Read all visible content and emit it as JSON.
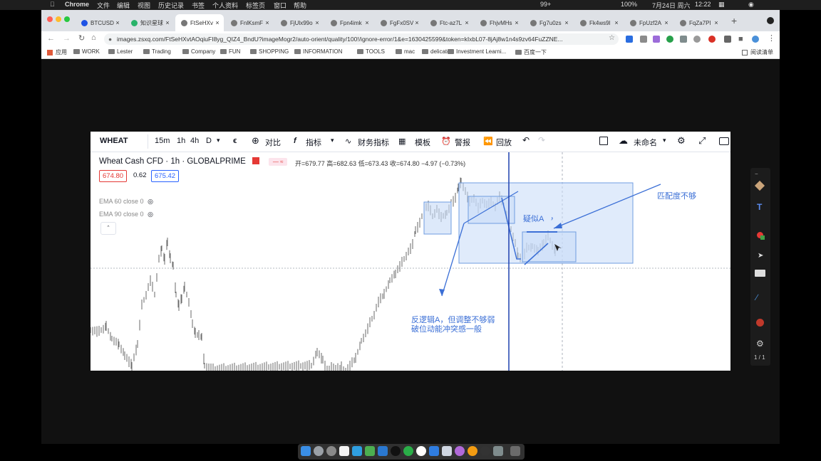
{
  "menubar": {
    "app": "Chrome",
    "items": [
      "文件",
      "编辑",
      "视图",
      "历史记录",
      "书签",
      "个人资料",
      "标签页",
      "窗口",
      "帮助"
    ],
    "notif_count": "99+",
    "battery": "100%",
    "date": "7月24日 周六",
    "time": "12:22"
  },
  "tabs": [
    {
      "label": "BTCUSD",
      "color": "#1e53e5"
    },
    {
      "label": "知识星球",
      "color": "#29b36a"
    },
    {
      "label": "FtSeHXv",
      "color": "#777777",
      "active": true
    },
    {
      "label": "FnlKsmF",
      "color": "#777777"
    },
    {
      "label": "FjUlx99o",
      "color": "#777777"
    },
    {
      "label": "Fpn4imk",
      "color": "#777777"
    },
    {
      "label": "FgFx0SV",
      "color": "#777777"
    },
    {
      "label": "Ftc-az7L",
      "color": "#777777"
    },
    {
      "label": "FhjvMHs",
      "color": "#777777"
    },
    {
      "label": "Fg7u0zs",
      "color": "#777777"
    },
    {
      "label": "Fk4ws9l",
      "color": "#777777"
    },
    {
      "label": "FpUzf2A",
      "color": "#777777"
    },
    {
      "label": "FqZa7Pl",
      "color": "#777777"
    }
  ],
  "address": {
    "url": "images.zsxq.com/FtSeHXvtAOqiuFI8yg_QIZ4_BndU?imageMogr2/auto-orient/quality/100!/ignore-error/1&e=1630425599&token=kIxbL07-8jAj8w1n4s9zv64FuZZNE..."
  },
  "bookmarks": {
    "apps_label": "应用",
    "items": [
      "WORK",
      "Lester",
      "Trading",
      "Company",
      "FUN",
      "SHOPPING",
      "INFORMATION",
      "TOOLS",
      "mac",
      "delicate",
      "Investment Learni...",
      "百度一下"
    ],
    "reading_list": "阅读清单"
  },
  "toolbar": {
    "symbol": "WHEAT",
    "intervals": [
      "15m",
      "1h",
      "4h",
      "D"
    ],
    "compare": "对比",
    "indicators": "指标",
    "financials": "财务指标",
    "templates": "模板",
    "alerts": "警报",
    "replay": "回放",
    "layout_name": "未命名"
  },
  "legend": {
    "title": "Wheat Cash CFD · 1h · GLOBALPRIME",
    "ohlc": "开=679.77 高=682.63 低=673.43 收=674.80 −4.97 (−0.73%)",
    "bid": "674.80",
    "spread": "0.62",
    "ask": "675.42",
    "ema1": "EMA 60 close 0",
    "ema2": "EMA 90 close 0"
  },
  "annotations": {
    "similar_a": "疑似A",
    "comma": "，",
    "mismatch": "匹配度不够",
    "reverse_line1": "反逻辑A，但调整不够弱",
    "reverse_line2": "破位动能冲突感一般"
  },
  "drawing_toolbar": {
    "page": "1 / 1"
  },
  "colors": {
    "annotation_blue": "#3b6fd6",
    "box_fill": "#c6dbf7",
    "bid_red": "#e53935",
    "ask_blue": "#2962ff"
  }
}
